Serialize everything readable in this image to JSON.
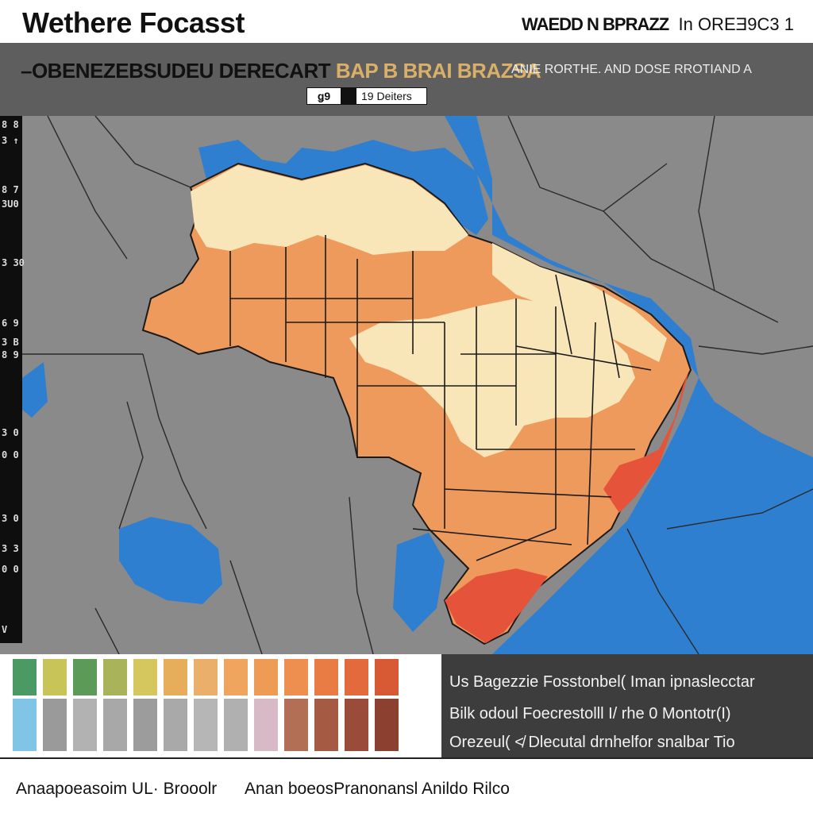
{
  "header": {
    "app_title": "Wethere Focasst",
    "region_title": "WAEDD N BPRAZZ",
    "region_code": "In OREƎ9C3 1"
  },
  "banner": {
    "headline": "–OBENEZEBSUDEU DERECART",
    "headline_accent": "BAP B BRAI BRAZSA",
    "subhead": "ANIE RORTHE. AND DOSE RROTIAND A",
    "date_left": "ǥ9",
    "date_right": "19 Deiters"
  },
  "scale": {
    "labels": [
      "8 8",
      "3 ↑",
      "8 7",
      "3U0",
      "3 30",
      "6 9",
      "3 B",
      "8 9",
      "3 0",
      "0 0",
      "3 0",
      "3 3",
      "0 0",
      "V"
    ]
  },
  "legend": {
    "top_colors": [
      "#4c9a63",
      "#c8c457",
      "#5b9a57",
      "#a9b45a",
      "#d6c65e",
      "#e6ae5b",
      "#eab06b",
      "#efa55e",
      "#ee9b55",
      "#ee8f4f",
      "#e97b45",
      "#e26a3d",
      "#d85a35"
    ],
    "bottom_colors": [
      "#80c4e6",
      "#9a9a9a",
      "#b2b2b2",
      "#a8a8a8",
      "#9c9c9c",
      "#a9a9a9",
      "#b6b6b6",
      "#b0b0b0",
      "#d8b9c6",
      "#b36f55",
      "#a55a44",
      "#9a4b3a",
      "#8c4030"
    ]
  },
  "info": {
    "line1": "Us Bagezzie Fosstonbel( Iman ipnaslecctar",
    "line2": "Bilk odoul Foecrestolll I/ rhe 0 Montotr(I)",
    "line3": "Orezeul( ≮ Dlecutal drnhelfor snalbar Tio"
  },
  "footer": {
    "left": "Anaapoeasoim UL· Brooolr",
    "right": "Anan boeosPranonansl Anildo Rilco"
  },
  "map": {
    "ocean_color": "#2f7fd1",
    "land_color": "#8a8a8a",
    "cool_color": "#f9e6b8",
    "warm_color": "#ee9a5c",
    "hot_color": "#e5533a"
  }
}
